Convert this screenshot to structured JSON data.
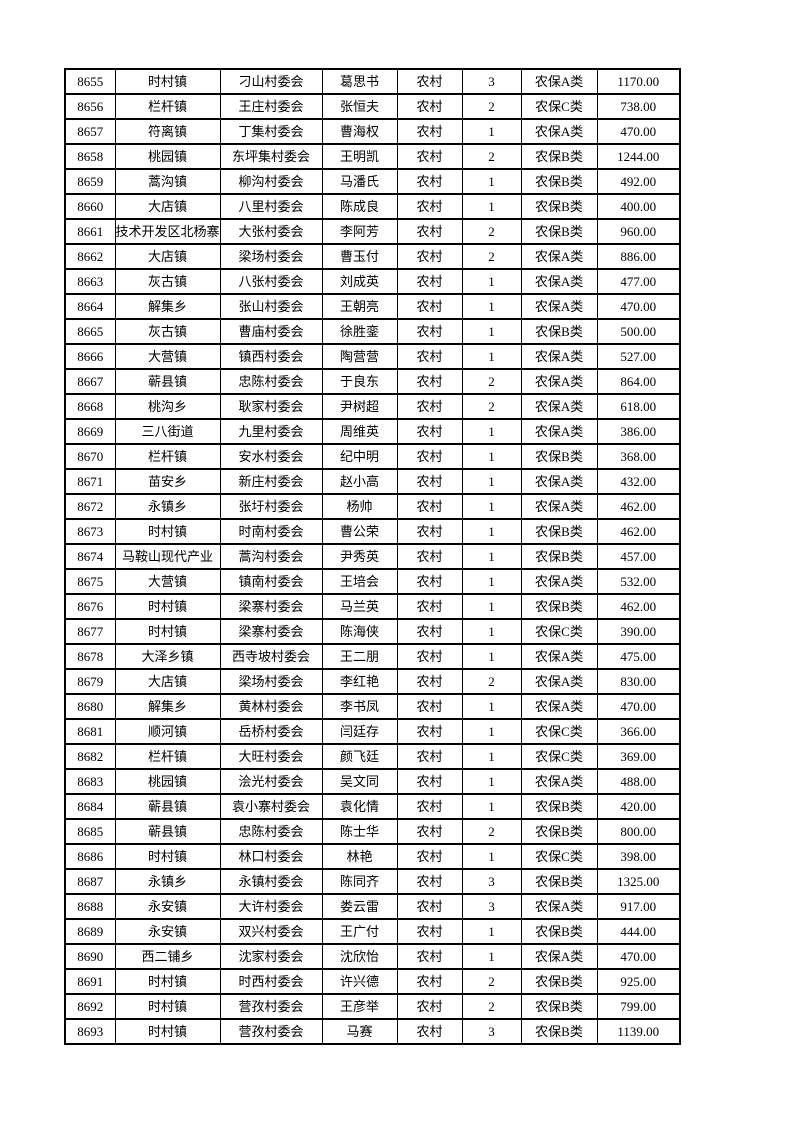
{
  "page": {
    "background": "#ffffff",
    "text_color": "#000000",
    "border_color": "#000000"
  },
  "table": {
    "rows": [
      [
        "8655",
        "时村镇",
        "刁山村委会",
        "葛思书",
        "农村",
        "3",
        "农保A类",
        "1170.00"
      ],
      [
        "8656",
        "栏杆镇",
        "王庄村委会",
        "张恒夫",
        "农村",
        "2",
        "农保C类",
        "738.00"
      ],
      [
        "8657",
        "符离镇",
        "丁集村委会",
        "曹海权",
        "农村",
        "1",
        "农保A类",
        "470.00"
      ],
      [
        "8658",
        "桃园镇",
        "东坪集村委会",
        "王明凯",
        "农村",
        "2",
        "农保B类",
        "1244.00"
      ],
      [
        "8659",
        "蒿沟镇",
        "柳沟村委会",
        "马潘氏",
        "农村",
        "1",
        "农保B类",
        "492.00"
      ],
      [
        "8660",
        "大店镇",
        "八里村委会",
        "陈成良",
        "农村",
        "1",
        "农保B类",
        "400.00"
      ],
      [
        "8661",
        "技术开发区北杨寨",
        "大张村委会",
        "李阿芳",
        "农村",
        "2",
        "农保B类",
        "960.00"
      ],
      [
        "8662",
        "大店镇",
        "梁场村委会",
        "曹玉付",
        "农村",
        "2",
        "农保A类",
        "886.00"
      ],
      [
        "8663",
        "灰古镇",
        "八张村委会",
        "刘成英",
        "农村",
        "1",
        "农保A类",
        "477.00"
      ],
      [
        "8664",
        "解集乡",
        "张山村委会",
        "王朝亮",
        "农村",
        "1",
        "农保A类",
        "470.00"
      ],
      [
        "8665",
        "灰古镇",
        "曹庙村委会",
        "徐胜銮",
        "农村",
        "1",
        "农保B类",
        "500.00"
      ],
      [
        "8666",
        "大营镇",
        "镇西村委会",
        "陶营营",
        "农村",
        "1",
        "农保A类",
        "527.00"
      ],
      [
        "8667",
        "蕲县镇",
        "忠陈村委会",
        "于良东",
        "农村",
        "2",
        "农保A类",
        "864.00"
      ],
      [
        "8668",
        "桃沟乡",
        "耿家村委会",
        "尹树超",
        "农村",
        "2",
        "农保A类",
        "618.00"
      ],
      [
        "8669",
        "三八街道",
        "九里村委会",
        "周维英",
        "农村",
        "1",
        "农保A类",
        "386.00"
      ],
      [
        "8670",
        "栏杆镇",
        "安水村委会",
        "纪中明",
        "农村",
        "1",
        "农保B类",
        "368.00"
      ],
      [
        "8671",
        "苗安乡",
        "新庄村委会",
        "赵小高",
        "农村",
        "1",
        "农保A类",
        "432.00"
      ],
      [
        "8672",
        "永镇乡",
        "张圩村委会",
        "杨帅",
        "农村",
        "1",
        "农保A类",
        "462.00"
      ],
      [
        "8673",
        "时村镇",
        "时南村委会",
        "曹公荣",
        "农村",
        "1",
        "农保B类",
        "462.00"
      ],
      [
        "8674",
        "马鞍山现代产业",
        "蒿沟村委会",
        "尹秀英",
        "农村",
        "1",
        "农保B类",
        "457.00"
      ],
      [
        "8675",
        "大营镇",
        "镇南村委会",
        "王培会",
        "农村",
        "1",
        "农保A类",
        "532.00"
      ],
      [
        "8676",
        "时村镇",
        "梁寨村委会",
        "马兰英",
        "农村",
        "1",
        "农保B类",
        "462.00"
      ],
      [
        "8677",
        "时村镇",
        "梁寨村委会",
        "陈海侠",
        "农村",
        "1",
        "农保C类",
        "390.00"
      ],
      [
        "8678",
        "大泽乡镇",
        "西寺坡村委会",
        "王二朋",
        "农村",
        "1",
        "农保A类",
        "475.00"
      ],
      [
        "8679",
        "大店镇",
        "梁场村委会",
        "李红艳",
        "农村",
        "2",
        "农保A类",
        "830.00"
      ],
      [
        "8680",
        "解集乡",
        "黄林村委会",
        "李书凤",
        "农村",
        "1",
        "农保A类",
        "470.00"
      ],
      [
        "8681",
        "顺河镇",
        "岳桥村委会",
        "闫廷存",
        "农村",
        "1",
        "农保C类",
        "366.00"
      ],
      [
        "8682",
        "栏杆镇",
        "大旺村委会",
        "颜飞廷",
        "农村",
        "1",
        "农保C类",
        "369.00"
      ],
      [
        "8683",
        "桃园镇",
        "浍光村委会",
        "吴文同",
        "农村",
        "1",
        "农保A类",
        "488.00"
      ],
      [
        "8684",
        "蕲县镇",
        "袁小寨村委会",
        "袁化情",
        "农村",
        "1",
        "农保B类",
        "420.00"
      ],
      [
        "8685",
        "蕲县镇",
        "忠陈村委会",
        "陈士华",
        "农村",
        "2",
        "农保B类",
        "800.00"
      ],
      [
        "8686",
        "时村镇",
        "林口村委会",
        "林艳",
        "农村",
        "1",
        "农保C类",
        "398.00"
      ],
      [
        "8687",
        "永镇乡",
        "永镇村委会",
        "陈同齐",
        "农村",
        "3",
        "农保B类",
        "1325.00"
      ],
      [
        "8688",
        "永安镇",
        "大许村委会",
        "娄云雷",
        "农村",
        "3",
        "农保A类",
        "917.00"
      ],
      [
        "8689",
        "永安镇",
        "双兴村委会",
        "王广付",
        "农村",
        "1",
        "农保B类",
        "444.00"
      ],
      [
        "8690",
        "西二铺乡",
        "沈家村委会",
        "沈欣怡",
        "农村",
        "1",
        "农保A类",
        "470.00"
      ],
      [
        "8691",
        "时村镇",
        "时西村委会",
        "许兴德",
        "农村",
        "2",
        "农保B类",
        "925.00"
      ],
      [
        "8692",
        "时村镇",
        "营孜村委会",
        "王彦举",
        "农村",
        "2",
        "农保B类",
        "799.00"
      ],
      [
        "8693",
        "时村镇",
        "营孜村委会",
        "马赛",
        "农村",
        "3",
        "农保B类",
        "1139.00"
      ]
    ]
  }
}
